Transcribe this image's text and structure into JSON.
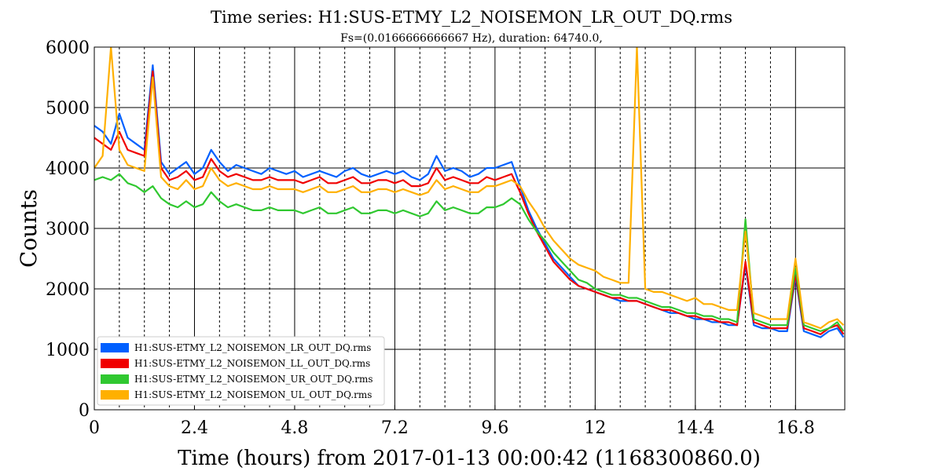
{
  "chart_data": {
    "type": "line",
    "title": "Time series:  H1:SUS-ETMY_L2_NOISEMON_LR_OUT_DQ.rms",
    "subtitle": "Fs=(0.0166666666667 Hz), duration: 64740.0,",
    "xlabel": "Time (hours) from 2017-01-13 00:00:42 (1168300860.0)",
    "ylabel": "Counts",
    "xlim": [
      0,
      17.98
    ],
    "ylim": [
      0,
      6000
    ],
    "x_ticks": [
      "0",
      "2.4",
      "4.8",
      "7.2",
      "9.6",
      "12",
      "14.4",
      "16.8"
    ],
    "y_ticks": [
      "0",
      "1000",
      "2000",
      "3000",
      "4000",
      "5000",
      "6000"
    ],
    "x_tick_values": [
      0,
      2.4,
      4.8,
      7.2,
      9.6,
      12,
      14.4,
      16.8
    ],
    "y_tick_values": [
      0,
      1000,
      2000,
      3000,
      4000,
      5000,
      6000
    ],
    "solid_vlines": [
      2.4,
      4.8,
      7.2,
      9.6,
      12,
      14.4,
      16.8
    ],
    "dashed_vlines": [
      0.6,
      1.2,
      1.8,
      3.0,
      3.6,
      4.2,
      5.4,
      6.0,
      6.6,
      7.8,
      8.4,
      9.0,
      10.2,
      10.8,
      11.4,
      12.6,
      13.2,
      13.8,
      15.0,
      15.6,
      16.2
    ],
    "grid": true,
    "legend_position": "lower-left",
    "x": [
      0,
      0.2,
      0.4,
      0.6,
      0.8,
      1.0,
      1.2,
      1.4,
      1.6,
      1.8,
      2.0,
      2.2,
      2.4,
      2.6,
      2.8,
      3.0,
      3.2,
      3.4,
      3.6,
      3.8,
      4.0,
      4.2,
      4.4,
      4.6,
      4.8,
      5.0,
      5.2,
      5.4,
      5.6,
      5.8,
      6.0,
      6.2,
      6.4,
      6.6,
      6.8,
      7.0,
      7.2,
      7.4,
      7.6,
      7.8,
      8.0,
      8.2,
      8.4,
      8.6,
      8.8,
      9.0,
      9.2,
      9.4,
      9.6,
      9.8,
      10.0,
      10.2,
      10.4,
      10.6,
      10.8,
      11.0,
      11.2,
      11.4,
      11.6,
      11.8,
      12.0,
      12.2,
      12.4,
      12.6,
      12.8,
      13.0,
      13.2,
      13.4,
      13.6,
      13.8,
      14.0,
      14.2,
      14.4,
      14.6,
      14.8,
      15.0,
      15.2,
      15.4,
      15.6,
      15.8,
      16.0,
      16.2,
      16.4,
      16.6,
      16.8,
      17.0,
      17.2,
      17.4,
      17.6,
      17.8,
      17.95
    ],
    "series": [
      {
        "name": "H1:SUS-ETMY_L2_NOISEMON_LR_OUT_DQ.rms",
        "color": "#0060ff",
        "values": [
          4700,
          4600,
          4400,
          4900,
          4500,
          4400,
          4300,
          5700,
          4100,
          3900,
          4000,
          4100,
          3900,
          4000,
          4300,
          4100,
          3950,
          4050,
          4000,
          3950,
          3900,
          4000,
          3950,
          3900,
          3950,
          3850,
          3900,
          3950,
          3900,
          3850,
          3950,
          4000,
          3900,
          3850,
          3900,
          3950,
          3900,
          3950,
          3850,
          3800,
          3900,
          4200,
          3950,
          4000,
          3950,
          3850,
          3900,
          4000,
          4000,
          4050,
          4100,
          3700,
          3300,
          3000,
          2750,
          2500,
          2350,
          2200,
          2050,
          2000,
          1950,
          1900,
          1850,
          1800,
          1800,
          1800,
          1750,
          1700,
          1650,
          1600,
          1600,
          1550,
          1500,
          1500,
          1450,
          1450,
          1400,
          1400,
          2400,
          1400,
          1350,
          1350,
          1300,
          1300,
          2200,
          1300,
          1250,
          1200,
          1300,
          1350,
          1200
        ]
      },
      {
        "name": "H1:SUS-ETMY_L2_NOISEMON_LL_OUT_DQ.rms",
        "color": "#f00000",
        "values": [
          4500,
          4400,
          4300,
          4600,
          4300,
          4250,
          4200,
          5600,
          4000,
          3800,
          3850,
          3950,
          3800,
          3850,
          4150,
          3950,
          3850,
          3900,
          3850,
          3800,
          3800,
          3850,
          3800,
          3800,
          3800,
          3750,
          3800,
          3850,
          3750,
          3750,
          3800,
          3850,
          3750,
          3750,
          3800,
          3800,
          3750,
          3800,
          3700,
          3700,
          3750,
          4000,
          3800,
          3850,
          3800,
          3750,
          3750,
          3850,
          3800,
          3850,
          3900,
          3600,
          3250,
          2950,
          2700,
          2450,
          2300,
          2150,
          2050,
          2000,
          1950,
          1900,
          1850,
          1850,
          1800,
          1800,
          1750,
          1700,
          1650,
          1650,
          1600,
          1550,
          1550,
          1500,
          1500,
          1450,
          1450,
          1400,
          2450,
          1450,
          1400,
          1350,
          1350,
          1350,
          2250,
          1350,
          1300,
          1250,
          1350,
          1400,
          1250
        ]
      },
      {
        "name": "H1:SUS-ETMY_L2_NOISEMON_UR_OUT_DQ.rms",
        "color": "#30c830",
        "values": [
          3800,
          3850,
          3800,
          3900,
          3750,
          3700,
          3600,
          3700,
          3500,
          3400,
          3350,
          3450,
          3350,
          3400,
          3600,
          3450,
          3350,
          3400,
          3350,
          3300,
          3300,
          3350,
          3300,
          3300,
          3300,
          3250,
          3300,
          3350,
          3250,
          3250,
          3300,
          3350,
          3250,
          3250,
          3300,
          3300,
          3250,
          3300,
          3250,
          3200,
          3250,
          3450,
          3300,
          3350,
          3300,
          3250,
          3250,
          3350,
          3350,
          3400,
          3500,
          3400,
          3150,
          2950,
          2800,
          2600,
          2450,
          2300,
          2150,
          2100,
          2000,
          1950,
          1900,
          1900,
          1850,
          1850,
          1800,
          1750,
          1700,
          1700,
          1650,
          1600,
          1600,
          1550,
          1550,
          1500,
          1500,
          1450,
          3150,
          1500,
          1450,
          1400,
          1400,
          1400,
          2350,
          1400,
          1350,
          1300,
          1350,
          1450,
          1300
        ]
      },
      {
        "name": "H1:SUS-ETMY_L2_NOISEMON_UL_OUT_DQ.rms",
        "color": "#ffb000",
        "values": [
          4000,
          4200,
          6000,
          4300,
          4050,
          4000,
          3950,
          5500,
          3850,
          3700,
          3650,
          3800,
          3650,
          3700,
          4000,
          3800,
          3700,
          3750,
          3700,
          3650,
          3650,
          3700,
          3650,
          3650,
          3650,
          3600,
          3650,
          3700,
          3600,
          3600,
          3650,
          3700,
          3600,
          3600,
          3650,
          3650,
          3600,
          3650,
          3600,
          3550,
          3600,
          3800,
          3650,
          3700,
          3650,
          3600,
          3600,
          3700,
          3700,
          3750,
          3800,
          3700,
          3450,
          3250,
          3000,
          2800,
          2650,
          2500,
          2400,
          2350,
          2300,
          2200,
          2150,
          2100,
          2100,
          6000,
          2000,
          1950,
          1950,
          1900,
          1850,
          1800,
          1850,
          1750,
          1750,
          1700,
          1650,
          1650,
          2950,
          1600,
          1550,
          1500,
          1500,
          1500,
          2500,
          1450,
          1400,
          1350,
          1450,
          1500,
          1400
        ]
      }
    ]
  }
}
